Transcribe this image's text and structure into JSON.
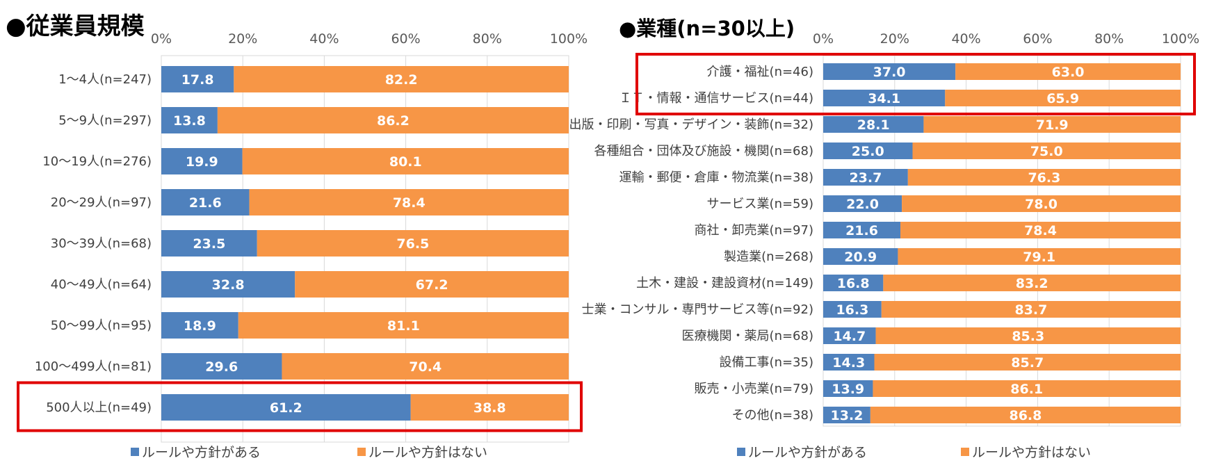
{
  "colors": {
    "yes": "#4F81BD",
    "no": "#F79646",
    "highlight": "#E00000",
    "grid": "#D9D9D9"
  },
  "chart_data": [
    {
      "type": "bar",
      "orientation": "horizontal-stacked-100",
      "title": "●従業員規模",
      "xlim": [
        0,
        100
      ],
      "ticks": [
        "0%",
        "20%",
        "40%",
        "60%",
        "80%",
        "100%"
      ],
      "categories": [
        "1〜4人(n=247)",
        "5〜9人(n=297)",
        "10〜19人(n=276)",
        "20〜29人(n=97)",
        "30〜39人(n=68)",
        "40〜49人(n=64)",
        "50〜99人(n=95)",
        "100〜499人(n=81)",
        "500人以上(n=49)"
      ],
      "series": [
        {
          "name": "ルールや方針がある",
          "values": [
            17.8,
            13.8,
            19.9,
            21.6,
            23.5,
            32.8,
            18.9,
            29.6,
            61.2
          ]
        },
        {
          "name": "ルールや方針はない",
          "values": [
            82.2,
            86.2,
            80.1,
            78.4,
            76.5,
            67.2,
            81.1,
            70.4,
            38.8
          ]
        }
      ],
      "highlighted_categories": [
        "500人以上(n=49)"
      ]
    },
    {
      "type": "bar",
      "orientation": "horizontal-stacked-100",
      "title": "●業種(n=30以上)",
      "xlim": [
        0,
        100
      ],
      "ticks": [
        "0%",
        "20%",
        "40%",
        "60%",
        "80%",
        "100%"
      ],
      "categories": [
        "介護・福祉(n=46)",
        "ＩＴ・情報・通信サービス(n=44)",
        "出版・印刷・写真・デザイン・装飾(n=32)",
        "各種組合・団体及び施設・機関(n=68)",
        "運輸・郵便・倉庫・物流業(n=38)",
        "サービス業(n=59)",
        "商社・卸売業(n=97)",
        "製造業(n=268)",
        "土木・建設・建設資材(n=149)",
        "士業・コンサル・専門サービス等(n=92)",
        "医療機関・薬局(n=68)",
        "設備工事(n=35)",
        "販売・小売業(n=79)",
        "その他(n=38)"
      ],
      "series": [
        {
          "name": "ルールや方針がある",
          "values": [
            37.0,
            34.1,
            28.1,
            25.0,
            23.7,
            22.0,
            21.6,
            20.9,
            16.8,
            16.3,
            14.7,
            14.3,
            13.9,
            13.2
          ]
        },
        {
          "name": "ルールや方針はない",
          "values": [
            63.0,
            65.9,
            71.9,
            75.0,
            76.3,
            78.0,
            78.4,
            79.1,
            83.2,
            83.7,
            85.3,
            85.7,
            86.1,
            86.8
          ]
        }
      ],
      "highlighted_categories": [
        "介護・福祉(n=46)",
        "ＩＴ・情報・通信サービス(n=44)"
      ]
    }
  ]
}
